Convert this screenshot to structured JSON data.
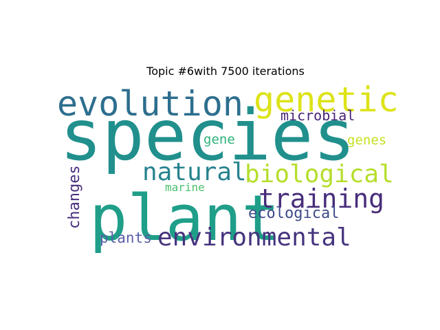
{
  "title": "Topic #6with 7500 iterations",
  "words": [
    {
      "text": "species",
      "color": "#21908d"
    },
    {
      "text": "plant",
      "color": "#1f9e89"
    },
    {
      "text": "evolution",
      "color": "#2d6e8e"
    },
    {
      "text": "genetic",
      "color": "#dde318"
    },
    {
      "text": "natural",
      "color": "#26828e"
    },
    {
      "text": "biological",
      "color": "#b5de2b"
    },
    {
      "text": "training",
      "color": "#472c7a"
    },
    {
      "text": "environmental",
      "color": "#46337e"
    },
    {
      "text": "microbial",
      "color": "#482475"
    },
    {
      "text": "ecological",
      "color": "#3e4a89"
    },
    {
      "text": "changes",
      "color": "#472d7b"
    },
    {
      "text": "gene",
      "color": "#2db27d"
    },
    {
      "text": "genes",
      "color": "#c8e020"
    },
    {
      "text": "marine",
      "color": "#4ac16d"
    },
    {
      "text": "plants",
      "color": "#5b5da8"
    }
  ]
}
